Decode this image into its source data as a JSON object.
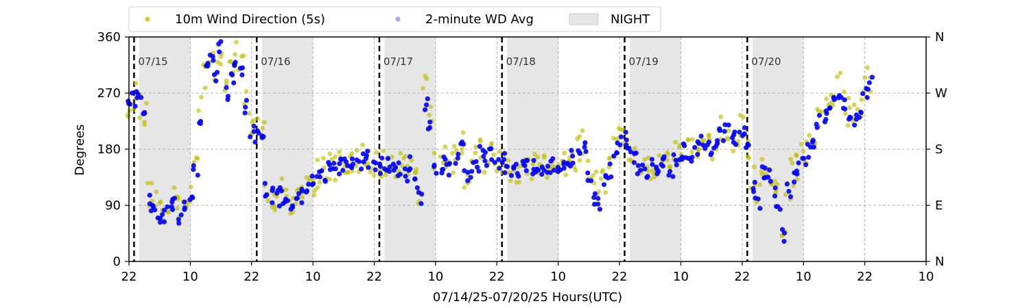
{
  "chart_data": {
    "type": "scatter",
    "xlabel": "07/14/25-07/20/25  Hours(UTC)",
    "ylabel": "Degrees",
    "x_range_hours": [
      0,
      156
    ],
    "ylim": [
      0,
      360
    ],
    "x_ticks": [
      {
        "h": 0,
        "label": "22"
      },
      {
        "h": 12,
        "label": "10"
      },
      {
        "h": 24,
        "label": "22"
      },
      {
        "h": 36,
        "label": "10"
      },
      {
        "h": 48,
        "label": "22"
      },
      {
        "h": 60,
        "label": "10"
      },
      {
        "h": 72,
        "label": "22"
      },
      {
        "h": 84,
        "label": "10"
      },
      {
        "h": 96,
        "label": "22"
      },
      {
        "h": 108,
        "label": "10"
      },
      {
        "h": 120,
        "label": "22"
      },
      {
        "h": 132,
        "label": "10"
      },
      {
        "h": 144,
        "label": "22"
      },
      {
        "h": 156,
        "label": "10"
      }
    ],
    "y_ticks": [
      0,
      90,
      180,
      270,
      360
    ],
    "right_ticks": [
      {
        "value": 0,
        "label": "N"
      },
      {
        "value": 90,
        "label": "E"
      },
      {
        "value": 180,
        "label": "S"
      },
      {
        "value": 270,
        "label": "W"
      },
      {
        "value": 360,
        "label": "N"
      }
    ],
    "grid": true,
    "legend": {
      "placement": "top",
      "items": [
        {
          "label": "10m Wind Direction (5s)",
          "kind": "point",
          "color": "#bfbf00"
        },
        {
          "label": "2-minute WD Avg",
          "kind": "point",
          "color": "#0000ff"
        },
        {
          "label": "NIGHT",
          "kind": "patch",
          "color": "#e6e6e6"
        }
      ]
    },
    "night_shading": [
      [
        2,
        12
      ],
      [
        26,
        36
      ],
      [
        50,
        60
      ],
      [
        74,
        84
      ],
      [
        98,
        108
      ],
      [
        122,
        132
      ]
    ],
    "day_boundaries": [
      {
        "h": 1,
        "label": "07/15"
      },
      {
        "h": 25,
        "label": "07/16"
      },
      {
        "h": 49,
        "label": "07/17"
      },
      {
        "h": 73,
        "label": "07/18"
      },
      {
        "h": 97,
        "label": "07/19"
      },
      {
        "h": 121,
        "label": "07/20"
      }
    ],
    "series": [
      {
        "name": "10m Wind Direction (5s)",
        "color": "#bfbf00",
        "points": [
          [
            0,
            255
          ],
          [
            1,
            262
          ],
          [
            2,
            250
          ],
          [
            3,
            235
          ],
          [
            4,
            110
          ],
          [
            5,
            95
          ],
          [
            6,
            85
          ],
          [
            7,
            80
          ],
          [
            8,
            90
          ],
          [
            9,
            100
          ],
          [
            10,
            80
          ],
          [
            11,
            95
          ],
          [
            12,
            110
          ],
          [
            13,
            150
          ],
          [
            14,
            240
          ],
          [
            15,
            300
          ],
          [
            16,
            320
          ],
          [
            17,
            300
          ],
          [
            18,
            340
          ],
          [
            19,
            280
          ],
          [
            20,
            300
          ],
          [
            21,
            330
          ],
          [
            22,
            320
          ],
          [
            23,
            260
          ],
          [
            24,
            215
          ],
          [
            25,
            210
          ],
          [
            26,
            200
          ],
          [
            27,
            120
          ],
          [
            28,
            110
          ],
          [
            29,
            100
          ],
          [
            30,
            110
          ],
          [
            31,
            95
          ],
          [
            32,
            90
          ],
          [
            33,
            100
          ],
          [
            34,
            110
          ],
          [
            35,
            120
          ],
          [
            36,
            130
          ],
          [
            37,
            140
          ],
          [
            38,
            145
          ],
          [
            39,
            150
          ],
          [
            40,
            150
          ],
          [
            41,
            155
          ],
          [
            42,
            155
          ],
          [
            43,
            160
          ],
          [
            44,
            158
          ],
          [
            45,
            162
          ],
          [
            46,
            165
          ],
          [
            47,
            165
          ],
          [
            48,
            160
          ],
          [
            49,
            158
          ],
          [
            50,
            160
          ],
          [
            51,
            155
          ],
          [
            52,
            150
          ],
          [
            53,
            150
          ],
          [
            54,
            145
          ],
          [
            55,
            160
          ],
          [
            56,
            130
          ],
          [
            57,
            110
          ],
          [
            58,
            300
          ],
          [
            59,
            230
          ],
          [
            60,
            150
          ],
          [
            61,
            155
          ],
          [
            62,
            165
          ],
          [
            63,
            150
          ],
          [
            64,
            170
          ],
          [
            65,
            190
          ],
          [
            66,
            140
          ],
          [
            67,
            150
          ],
          [
            68,
            160
          ],
          [
            69,
            175
          ],
          [
            70,
            165
          ],
          [
            71,
            170
          ],
          [
            72,
            160
          ],
          [
            73,
            162
          ],
          [
            74,
            155
          ],
          [
            75,
            150
          ],
          [
            76,
            148
          ],
          [
            77,
            150
          ],
          [
            78,
            155
          ],
          [
            79,
            152
          ],
          [
            80,
            150
          ],
          [
            81,
            155
          ],
          [
            82,
            150
          ],
          [
            83,
            158
          ],
          [
            84,
            160
          ],
          [
            85,
            155
          ],
          [
            86,
            165
          ],
          [
            87,
            170
          ],
          [
            88,
            180
          ],
          [
            89,
            190
          ],
          [
            90,
            150
          ],
          [
            91,
            120
          ],
          [
            92,
            110
          ],
          [
            93,
            130
          ],
          [
            94,
            150
          ],
          [
            95,
            180
          ],
          [
            96,
            200
          ],
          [
            97,
            205
          ],
          [
            98,
            180
          ],
          [
            99,
            170
          ],
          [
            100,
            150
          ],
          [
            101,
            145
          ],
          [
            102,
            155
          ],
          [
            103,
            150
          ],
          [
            104,
            160
          ],
          [
            105,
            165
          ],
          [
            106,
            150
          ],
          [
            107,
            170
          ],
          [
            108,
            180
          ],
          [
            109,
            185
          ],
          [
            110,
            175
          ],
          [
            111,
            190
          ],
          [
            112,
            195
          ],
          [
            113,
            200
          ],
          [
            114,
            180
          ],
          [
            115,
            190
          ],
          [
            116,
            210
          ],
          [
            117,
            220
          ],
          [
            118,
            200
          ],
          [
            119,
            205
          ],
          [
            120,
            215
          ],
          [
            121,
            180
          ],
          [
            122,
            130
          ],
          [
            123,
            100
          ],
          [
            124,
            150
          ],
          [
            125,
            140
          ],
          [
            126,
            120
          ],
          [
            127,
            100
          ],
          [
            128,
            60
          ],
          [
            129,
            120
          ],
          [
            130,
            140
          ],
          [
            131,
            150
          ],
          [
            132,
            170
          ],
          [
            133,
            180
          ],
          [
            134,
            200
          ],
          [
            135,
            230
          ],
          [
            136,
            240
          ],
          [
            137,
            250
          ],
          [
            138,
            260
          ],
          [
            139,
            280
          ],
          [
            140,
            260
          ],
          [
            141,
            240
          ],
          [
            142,
            230
          ],
          [
            143,
            240
          ],
          [
            144,
            275
          ],
          [
            145,
            290
          ]
        ]
      },
      {
        "name": "2-minute WD Avg",
        "color": "#0000ff",
        "points": [
          [
            0,
            255
          ],
          [
            1,
            262
          ],
          [
            2,
            265
          ],
          [
            3,
            240
          ],
          [
            4,
            95
          ],
          [
            5,
            85
          ],
          [
            6,
            75
          ],
          [
            7,
            70
          ],
          [
            8,
            85
          ],
          [
            9,
            90
          ],
          [
            10,
            75
          ],
          [
            11,
            90
          ],
          [
            12,
            100
          ],
          [
            13,
            140
          ],
          [
            14,
            230
          ],
          [
            15,
            310
          ],
          [
            16,
            330
          ],
          [
            17,
            290
          ],
          [
            18,
            345
          ],
          [
            19,
            270
          ],
          [
            20,
            290
          ],
          [
            21,
            320
          ],
          [
            22,
            310
          ],
          [
            23,
            250
          ],
          [
            24,
            210
          ],
          [
            25,
            205
          ],
          [
            26,
            195
          ],
          [
            27,
            115
          ],
          [
            28,
            105
          ],
          [
            29,
            100
          ],
          [
            30,
            105
          ],
          [
            31,
            90
          ],
          [
            32,
            85
          ],
          [
            33,
            95
          ],
          [
            34,
            105
          ],
          [
            35,
            115
          ],
          [
            36,
            125
          ],
          [
            37,
            138
          ],
          [
            38,
            142
          ],
          [
            39,
            148
          ],
          [
            40,
            150
          ],
          [
            41,
            153
          ],
          [
            42,
            156
          ],
          [
            43,
            158
          ],
          [
            44,
            156
          ],
          [
            45,
            160
          ],
          [
            46,
            162
          ],
          [
            47,
            163
          ],
          [
            48,
            158
          ],
          [
            49,
            155
          ],
          [
            50,
            158
          ],
          [
            51,
            152
          ],
          [
            52,
            148
          ],
          [
            53,
            148
          ],
          [
            54,
            142
          ],
          [
            55,
            155
          ],
          [
            56,
            125
          ],
          [
            57,
            105
          ],
          [
            58,
            250
          ],
          [
            59,
            225
          ],
          [
            60,
            148
          ],
          [
            61,
            152
          ],
          [
            62,
            160
          ],
          [
            63,
            148
          ],
          [
            64,
            168
          ],
          [
            65,
            185
          ],
          [
            66,
            138
          ],
          [
            67,
            148
          ],
          [
            68,
            158
          ],
          [
            69,
            172
          ],
          [
            70,
            162
          ],
          [
            71,
            168
          ],
          [
            72,
            158
          ],
          [
            73,
            160
          ],
          [
            74,
            152
          ],
          [
            75,
            148
          ],
          [
            76,
            146
          ],
          [
            77,
            148
          ],
          [
            78,
            152
          ],
          [
            79,
            150
          ],
          [
            80,
            148
          ],
          [
            81,
            152
          ],
          [
            82,
            148
          ],
          [
            83,
            155
          ],
          [
            84,
            158
          ],
          [
            85,
            152
          ],
          [
            86,
            162
          ],
          [
            87,
            168
          ],
          [
            88,
            175
          ],
          [
            89,
            185
          ],
          [
            90,
            140
          ],
          [
            91,
            100
          ],
          [
            92,
            90
          ],
          [
            93,
            125
          ],
          [
            94,
            145
          ],
          [
            95,
            175
          ],
          [
            96,
            195
          ],
          [
            97,
            200
          ],
          [
            98,
            175
          ],
          [
            99,
            165
          ],
          [
            100,
            148
          ],
          [
            101,
            142
          ],
          [
            102,
            150
          ],
          [
            103,
            148
          ],
          [
            104,
            155
          ],
          [
            105,
            160
          ],
          [
            106,
            148
          ],
          [
            107,
            165
          ],
          [
            108,
            175
          ],
          [
            109,
            180
          ],
          [
            110,
            172
          ],
          [
            111,
            185
          ],
          [
            112,
            190
          ],
          [
            113,
            195
          ],
          [
            114,
            178
          ],
          [
            115,
            185
          ],
          [
            116,
            205
          ],
          [
            117,
            215
          ],
          [
            118,
            198
          ],
          [
            119,
            200
          ],
          [
            120,
            210
          ],
          [
            121,
            175
          ],
          [
            122,
            125
          ],
          [
            123,
            95
          ],
          [
            124,
            145
          ],
          [
            125,
            135
          ],
          [
            126,
            115
          ],
          [
            127,
            95
          ],
          [
            128,
            40
          ],
          [
            129,
            115
          ],
          [
            130,
            135
          ],
          [
            131,
            145
          ],
          [
            132,
            165
          ],
          [
            133,
            178
          ],
          [
            134,
            195
          ],
          [
            135,
            225
          ],
          [
            136,
            235
          ],
          [
            137,
            245
          ],
          [
            138,
            255
          ],
          [
            139,
            275
          ],
          [
            140,
            255
          ],
          [
            141,
            235
          ],
          [
            142,
            228
          ],
          [
            143,
            235
          ],
          [
            144,
            270
          ],
          [
            145,
            285
          ]
        ]
      }
    ]
  }
}
